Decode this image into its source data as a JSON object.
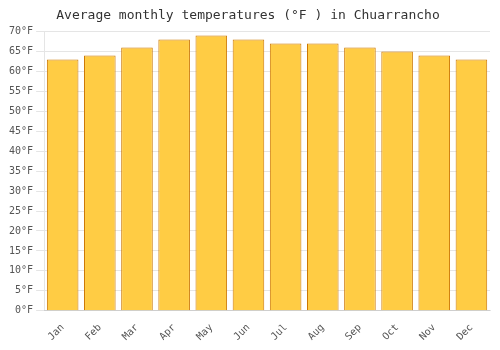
{
  "chart_data": {
    "type": "bar",
    "title": "Average monthly temperatures (°F ) in Chuarrancho",
    "categories": [
      "Jan",
      "Feb",
      "Mar",
      "Apr",
      "May",
      "Jun",
      "Jul",
      "Aug",
      "Sep",
      "Oct",
      "Nov",
      "Dec"
    ],
    "values": [
      63,
      64,
      66,
      68,
      69,
      68,
      67,
      67,
      66,
      65,
      64,
      63
    ],
    "color": "#FFCC44",
    "ylim": [
      0,
      70
    ],
    "yticks": [
      {
        "value": 0,
        "label": "0°F"
      },
      {
        "value": 5,
        "label": "5°F"
      },
      {
        "value": 10,
        "label": "10°F"
      },
      {
        "value": 15,
        "label": "15°F"
      },
      {
        "value": 20,
        "label": "20°F"
      },
      {
        "value": 25,
        "label": "25°F"
      },
      {
        "value": 30,
        "label": "30°F"
      },
      {
        "value": 35,
        "label": "35°F"
      },
      {
        "value": 40,
        "label": "40°F"
      },
      {
        "value": 45,
        "label": "45°F"
      },
      {
        "value": 50,
        "label": "50°F"
      },
      {
        "value": 55,
        "label": "55°F"
      },
      {
        "value": 60,
        "label": "60°F"
      },
      {
        "value": 65,
        "label": "65°F"
      },
      {
        "value": 70,
        "label": "70°F"
      }
    ],
    "grid": true
  }
}
